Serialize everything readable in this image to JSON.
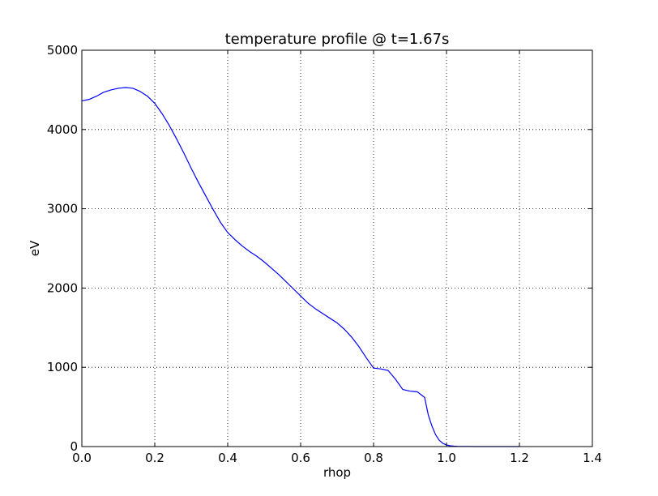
{
  "chart_data": {
    "type": "line",
    "title": "temperature profile @ t=1.67s",
    "xlabel": "rhop",
    "ylabel": "eV",
    "xlim": [
      0.0,
      1.4
    ],
    "ylim": [
      0,
      5000
    ],
    "grid": true,
    "xticks": [
      0.0,
      0.2,
      0.4,
      0.6,
      0.8,
      1.0,
      1.2,
      1.4
    ],
    "xtick_labels": [
      "0.0",
      "0.2",
      "0.4",
      "0.6",
      "0.8",
      "1.0",
      "1.2",
      "1.4"
    ],
    "yticks": [
      0,
      1000,
      2000,
      3000,
      4000,
      5000
    ],
    "ytick_labels": [
      "0",
      "1000",
      "2000",
      "3000",
      "4000",
      "5000"
    ],
    "series": [
      {
        "color": "#0000ff",
        "x": [
          0.0,
          0.02,
          0.04,
          0.06,
          0.08,
          0.1,
          0.12,
          0.14,
          0.16,
          0.18,
          0.2,
          0.22,
          0.24,
          0.26,
          0.28,
          0.3,
          0.32,
          0.34,
          0.36,
          0.38,
          0.4,
          0.42,
          0.44,
          0.46,
          0.48,
          0.5,
          0.52,
          0.54,
          0.56,
          0.58,
          0.6,
          0.62,
          0.64,
          0.66,
          0.68,
          0.7,
          0.72,
          0.74,
          0.76,
          0.78,
          0.8,
          0.82,
          0.84,
          0.86,
          0.88,
          0.9,
          0.92,
          0.94,
          0.95,
          0.96,
          0.97,
          0.98,
          0.99,
          1.0,
          1.01,
          1.02,
          1.03,
          1.04,
          1.06,
          1.08,
          1.1,
          1.15,
          1.2
        ],
        "y": [
          4360,
          4380,
          4420,
          4470,
          4500,
          4520,
          4530,
          4520,
          4480,
          4420,
          4330,
          4200,
          4050,
          3880,
          3700,
          3510,
          3330,
          3160,
          2990,
          2830,
          2700,
          2610,
          2530,
          2460,
          2400,
          2330,
          2250,
          2170,
          2080,
          1990,
          1900,
          1810,
          1740,
          1680,
          1620,
          1560,
          1480,
          1380,
          1260,
          1120,
          990,
          980,
          960,
          850,
          720,
          700,
          690,
          620,
          400,
          260,
          150,
          80,
          40,
          20,
          10,
          5,
          3,
          2,
          1,
          0,
          0,
          0,
          0
        ]
      }
    ]
  }
}
